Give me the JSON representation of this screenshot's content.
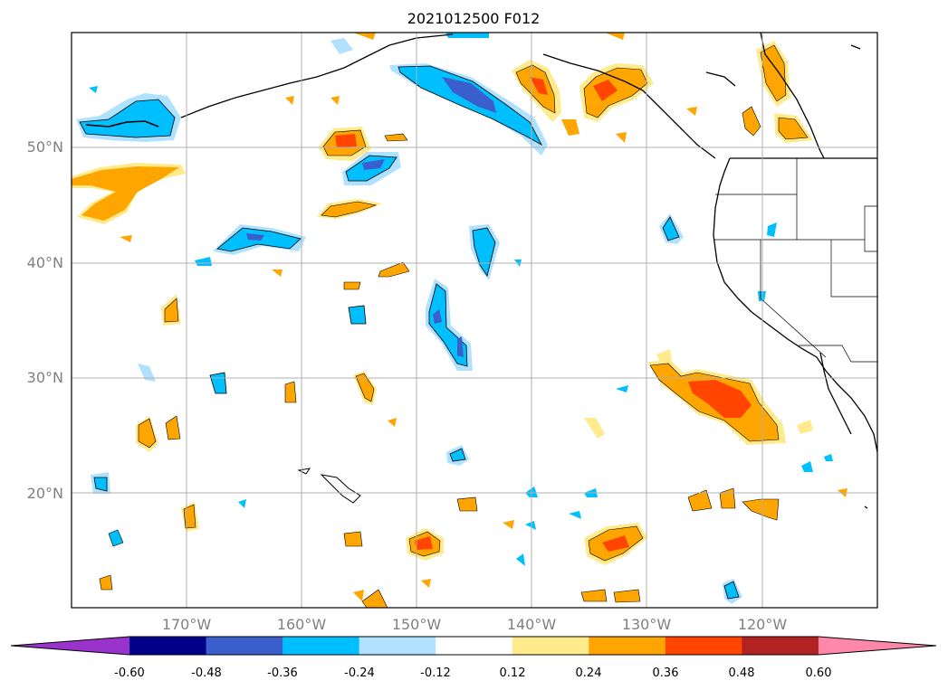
{
  "title": "2021012500 F012",
  "lat_labels": [
    "50°N",
    "40°N",
    "30°N",
    "20°N"
  ],
  "lon_labels": [
    "170°W",
    "160°W",
    "150°W",
    "140°W",
    "130°W",
    "120°W"
  ],
  "colorbar": {
    "ticks": [
      "-0.60",
      "-0.48",
      "-0.36",
      "-0.24",
      "-0.12",
      "0.12",
      "0.24",
      "0.36",
      "0.48",
      "0.60"
    ],
    "colors": [
      "#9933cc",
      "#00008b",
      "#3a5fcd",
      "#00bfff",
      "#b0e2ff",
      "#ffffff",
      "#ffeb8c",
      "#ffa500",
      "#ff4500",
      "#b22222",
      "#ff88aa"
    ]
  },
  "map": {
    "extent": {
      "lon": [
        -180,
        -110
      ],
      "lat": [
        10,
        60
      ]
    },
    "gridlines": true
  }
}
